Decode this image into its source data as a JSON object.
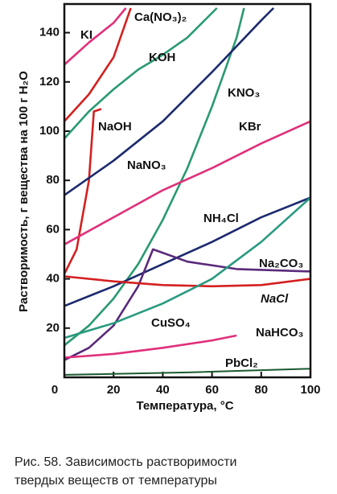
{
  "chart_data": {
    "type": "line",
    "xlabel": "Температура, °C",
    "ylabel": "Растворимость, г вещества на 100 г H₂O",
    "xlim": [
      0,
      100
    ],
    "ylim": [
      0,
      150
    ],
    "xticks": [
      0,
      20,
      40,
      60,
      80,
      100
    ],
    "yticks": [
      20,
      40,
      60,
      80,
      100,
      120,
      140
    ],
    "series": [
      {
        "name": "KI",
        "color": "#e0307a",
        "x": [
          0,
          10,
          20,
          25
        ],
        "values": [
          127,
          136,
          144,
          150
        ]
      },
      {
        "name": "Ca(NO₃)₂",
        "color": "#d42020",
        "x": [
          0,
          10,
          20,
          27
        ],
        "values": [
          104,
          115,
          130,
          150
        ]
      },
      {
        "name": "KOH",
        "color": "#2a9a70",
        "x": [
          0,
          10,
          20,
          30,
          40,
          50,
          62
        ],
        "values": [
          97,
          108,
          117,
          125,
          131,
          138,
          150
        ]
      },
      {
        "name": "KNO₃",
        "color": "#2a9a70",
        "x": [
          0,
          10,
          20,
          30,
          40,
          50,
          60,
          70,
          73
        ],
        "values": [
          13,
          21,
          32,
          46,
          64,
          85,
          110,
          138,
          150
        ]
      },
      {
        "name": "NaOH",
        "color": "#d42020",
        "x": [
          0,
          5,
          10,
          12,
          15
        ],
        "values": [
          42,
          52,
          80,
          108,
          109
        ]
      },
      {
        "name": "NaNO₃",
        "color": "#1c2a6e",
        "x": [
          0,
          20,
          40,
          60,
          80,
          85
        ],
        "values": [
          74,
          88,
          104,
          124,
          145,
          150
        ]
      },
      {
        "name": "KBr",
        "color": "#e0307a",
        "x": [
          0,
          20,
          40,
          60,
          80,
          100
        ],
        "values": [
          54,
          65,
          76,
          85,
          95,
          104
        ]
      },
      {
        "name": "NH₄Cl",
        "color": "#1c2a6e",
        "x": [
          0,
          20,
          40,
          60,
          80,
          100
        ],
        "values": [
          29,
          37,
          46,
          55,
          65,
          73
        ]
      },
      {
        "name": "Na₂CO₃",
        "color": "#5a2a7a",
        "x": [
          0,
          10,
          20,
          30,
          36,
          50,
          70,
          100
        ],
        "values": [
          7,
          12,
          21,
          37,
          52,
          47,
          44,
          43
        ]
      },
      {
        "name": "NaCl",
        "color": "#d42020",
        "x": [
          0,
          20,
          40,
          60,
          80,
          100
        ],
        "values": [
          41,
          39,
          37.5,
          37,
          37.5,
          40
        ]
      },
      {
        "name": "CuSO₄",
        "color": "#2a9a80",
        "x": [
          0,
          20,
          40,
          60,
          80,
          100
        ],
        "values": [
          16,
          22,
          30,
          40,
          55,
          73
        ]
      },
      {
        "name": "NaHCO₃",
        "color": "#e0307a",
        "x": [
          0,
          20,
          40,
          60,
          70
        ],
        "values": [
          8,
          9.5,
          12,
          15,
          17
        ]
      },
      {
        "name": "PbCl₂",
        "color": "#1a5a30",
        "x": [
          0,
          50,
          100
        ],
        "values": [
          1,
          2,
          3.5
        ]
      }
    ]
  },
  "caption": [
    "Рис. 58. Зависимость растворимости",
    "твердых веществ от температуры"
  ]
}
